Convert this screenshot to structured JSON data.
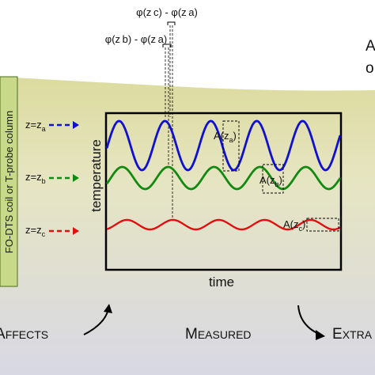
{
  "annotations": {
    "phase_top": "φ(z c) - φ(z a)",
    "phase_mid": "φ(z b) - φ(z a)"
  },
  "side_labels": {
    "column": "FO-DTS coil or T-probe column",
    "za": "z=z",
    "za_sub": "a",
    "zb": "z=z",
    "zb_sub": "b",
    "zc": "z=z",
    "zc_sub": "c"
  },
  "plot": {
    "ylabel": "temperature",
    "xlabel": "time",
    "amp_a": "A(z",
    "amp_a_sub": "a",
    "amp_b": "A(z",
    "amp_b_sub": "b",
    "amp_c": "A(z",
    "amp_c_sub": "c"
  },
  "right_edge": {
    "line1": "A",
    "line2": "o"
  },
  "bottom": {
    "left": "FFECTS",
    "left_cap": "A",
    "center": "EASURED",
    "center_cap": "M",
    "right": "XTRA",
    "right_cap": "E"
  },
  "colors": {
    "series_a": "#1010d0",
    "series_b": "#128a12",
    "series_c": "#e01010",
    "band_top": "#d9d79a",
    "band_bottom": "#d6d6e0",
    "column_fill": "#c9d98a"
  }
}
